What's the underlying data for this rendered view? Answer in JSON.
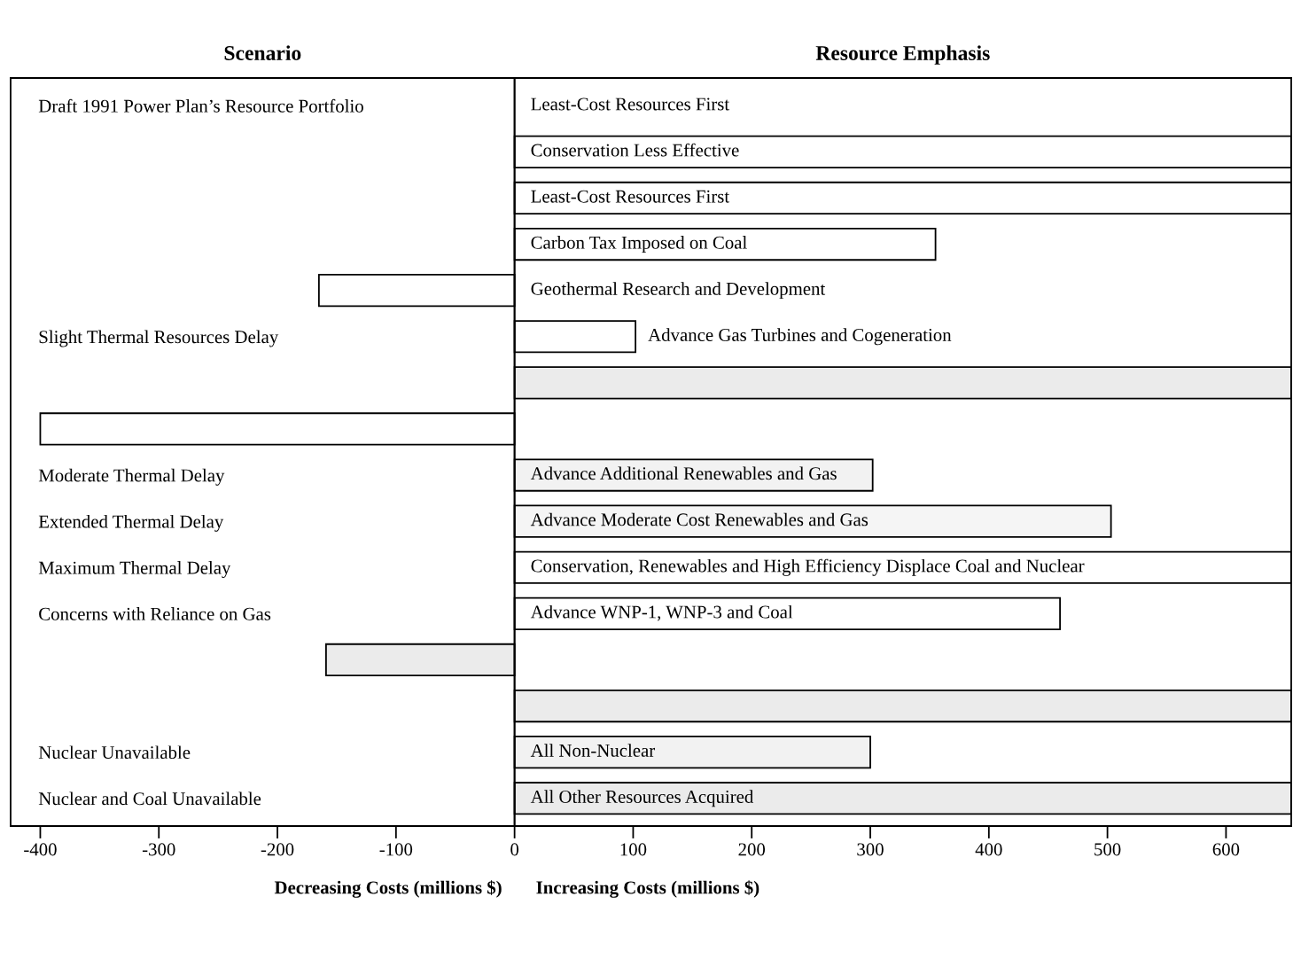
{
  "chart_data": {
    "type": "bar",
    "orientation": "horizontal",
    "categories": [
      "Draft 1991 Power Plan’s Resource Portfolio",
      null,
      null,
      null,
      null,
      "Slight Thermal Resources Delay",
      null,
      null,
      "Moderate Thermal Delay",
      "Extended Thermal Delay",
      "Maximum Thermal Delay",
      "Concerns with Reliance on Gas",
      null,
      null,
      "Nuclear Unavailable",
      "Nuclear and Coal Unavailable"
    ],
    "values": [
      null,
      655,
      655,
      355,
      -165,
      102,
      655,
      -400,
      302,
      503,
      655,
      460,
      -159,
      655,
      300,
      655
    ],
    "value_labels": [
      "Least-Cost Resources First",
      "Conservation Less Effective",
      "Least-Cost Resources First",
      "Carbon Tax Imposed on Coal",
      "Geothermal Research and Development",
      "Advance Gas Turbines and Cogeneration",
      null,
      null,
      "Advance Additional Renewables and Gas",
      "Advance Moderate Cost Renewables and Gas",
      "Conservation, Renewables and High Efficiency Displace Coal and Nuclear",
      "Advance WNP-1, WNP-3 and Coal",
      null,
      null,
      "All Non-Nuclear",
      "All Other Resources Acquired"
    ],
    "colors": [
      "#ffffff",
      "#ffffff",
      "#ffffff",
      "#ffffff",
      "#ffffff",
      "#ffffff",
      "#ebebeb",
      "#ffffff",
      "#f2f2f2",
      "#f5f5f5",
      "#ffffff",
      "#ffffff",
      "#ebebeb",
      "#ebebeb",
      "#f2f2f2",
      "#ebebeb"
    ],
    "xlim": [
      -425,
      655
    ],
    "xticks": [
      -400,
      -300,
      -200,
      -100,
      0,
      100,
      200,
      300,
      400,
      500,
      600
    ],
    "grid": false,
    "ref_lines": [
      {
        "axis": "x",
        "value": 0
      }
    ],
    "annotations": [
      "Scenario",
      "Resource Emphasis",
      "Decreasing Costs (millions $)",
      "Increasing Costs (millions $)"
    ]
  }
}
